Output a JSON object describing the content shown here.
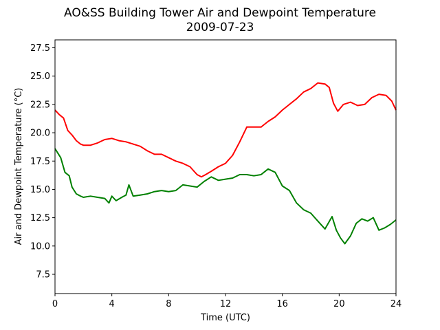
{
  "chart_data": {
    "type": "line",
    "title": "AO&SS Building Tower Air and Dewpoint Temperature",
    "subtitle": "2009-07-23",
    "xlabel": "Time (UTC)",
    "ylabel": "Air and Dewpoint Temperature (°C)",
    "xlim": [
      0,
      24
    ],
    "ylim": [
      5.8,
      28.2
    ],
    "xticks": [
      0,
      4,
      8,
      12,
      16,
      20,
      24
    ],
    "yticks": [
      7.5,
      10.0,
      12.5,
      15.0,
      17.5,
      20.0,
      22.5,
      25.0,
      27.5
    ],
    "grid": false,
    "legend": "none",
    "series": [
      {
        "color": "#ff0000",
        "x": [
          0,
          0.3,
          0.6,
          0.9,
          1.2,
          1.5,
          1.8,
          2.0,
          2.5,
          3.0,
          3.5,
          4.0,
          4.5,
          5.0,
          5.5,
          6.0,
          6.5,
          7.0,
          7.5,
          8.0,
          8.5,
          9.0,
          9.5,
          10.0,
          10.3,
          10.6,
          11.0,
          11.5,
          12.0,
          12.5,
          13.0,
          13.5,
          14.0,
          14.5,
          15.0,
          15.5,
          16.0,
          16.5,
          17.0,
          17.5,
          18.0,
          18.5,
          19.0,
          19.3,
          19.6,
          19.9,
          20.3,
          20.8,
          21.3,
          21.8,
          22.3,
          22.8,
          23.3,
          23.7,
          24.0
        ],
        "y": [
          22.0,
          21.6,
          21.3,
          20.2,
          19.8,
          19.3,
          19.0,
          18.9,
          18.9,
          19.1,
          19.4,
          19.5,
          19.3,
          19.2,
          19.0,
          18.8,
          18.4,
          18.1,
          18.1,
          17.8,
          17.5,
          17.3,
          17.0,
          16.3,
          16.1,
          16.3,
          16.6,
          17.0,
          17.3,
          18.0,
          19.2,
          20.5,
          20.5,
          20.5,
          21.0,
          21.4,
          22.0,
          22.5,
          23.0,
          23.6,
          23.9,
          24.4,
          24.3,
          24.0,
          22.6,
          21.9,
          22.5,
          22.7,
          22.4,
          22.5,
          23.1,
          23.4,
          23.3,
          22.8,
          22.0
        ]
      },
      {
        "color": "#008000",
        "x": [
          0,
          0.2,
          0.4,
          0.7,
          1.0,
          1.2,
          1.5,
          1.8,
          2.0,
          2.5,
          3.0,
          3.5,
          3.8,
          4.0,
          4.3,
          4.7,
          5.0,
          5.2,
          5.5,
          6.0,
          6.5,
          7.0,
          7.5,
          8.0,
          8.5,
          9.0,
          9.5,
          10.0,
          10.5,
          11.0,
          11.5,
          12.0,
          12.5,
          13.0,
          13.5,
          14.0,
          14.5,
          15.0,
          15.5,
          16.0,
          16.5,
          17.0,
          17.5,
          18.0,
          18.5,
          19.0,
          19.5,
          19.8,
          20.1,
          20.4,
          20.8,
          21.2,
          21.6,
          22.0,
          22.4,
          22.8,
          23.2,
          23.6,
          24.0
        ],
        "y": [
          18.6,
          18.2,
          17.8,
          16.5,
          16.2,
          15.2,
          14.6,
          14.4,
          14.3,
          14.4,
          14.3,
          14.2,
          13.8,
          14.4,
          14.0,
          14.3,
          14.5,
          15.4,
          14.4,
          14.5,
          14.6,
          14.8,
          14.9,
          14.8,
          14.9,
          15.4,
          15.3,
          15.2,
          15.7,
          16.1,
          15.8,
          15.9,
          16.0,
          16.3,
          16.3,
          16.2,
          16.3,
          16.8,
          16.5,
          15.3,
          14.9,
          13.8,
          13.2,
          12.9,
          12.2,
          11.5,
          12.6,
          11.4,
          10.7,
          10.2,
          10.9,
          12.0,
          12.4,
          12.2,
          12.5,
          11.4,
          11.6,
          11.9,
          12.3
        ]
      }
    ]
  }
}
